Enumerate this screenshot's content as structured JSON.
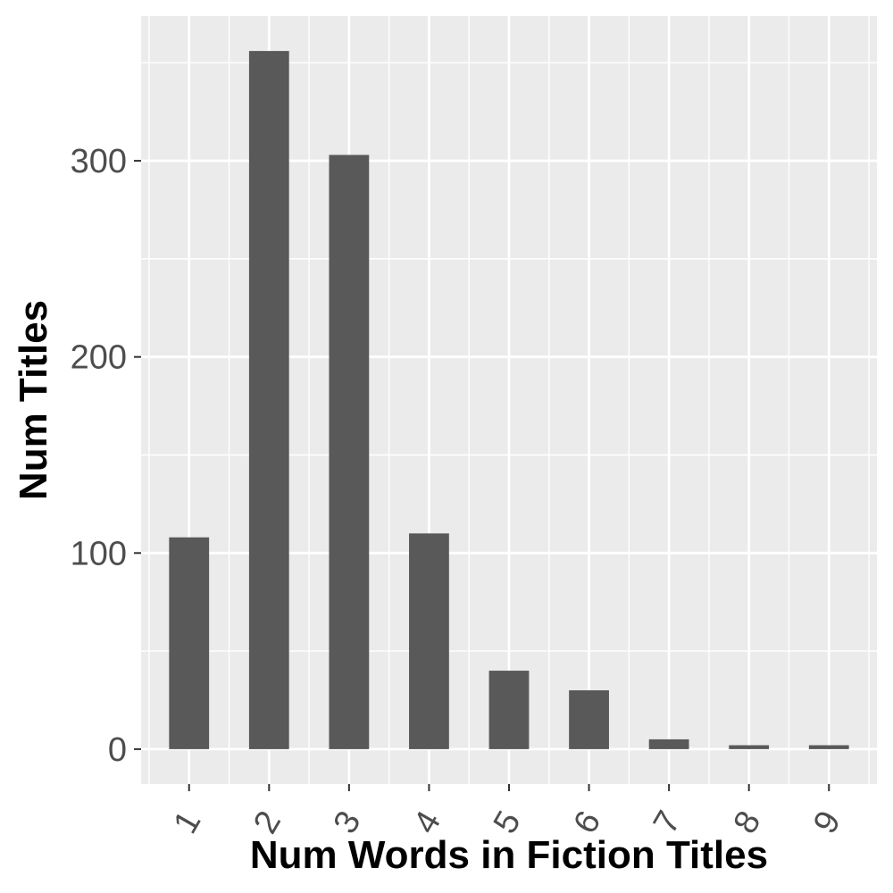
{
  "chart_data": {
    "type": "bar",
    "categories": [
      "1",
      "2",
      "3",
      "4",
      "5",
      "6",
      "7",
      "8",
      "9"
    ],
    "values": [
      108,
      356,
      303,
      110,
      40,
      30,
      5,
      2,
      2
    ],
    "xlabel": "Num Words in Fiction Titles",
    "ylabel": "Num Titles",
    "ylim": [
      -17.8,
      373.8
    ],
    "yticks": [
      0,
      100,
      200,
      300
    ],
    "grid": true,
    "legend": "none",
    "colors": {
      "bar": "#595959",
      "panel": "#ebebeb",
      "gridline": "#ffffff",
      "tick_text": "#4d4d4d",
      "title_text": "#000000"
    }
  }
}
